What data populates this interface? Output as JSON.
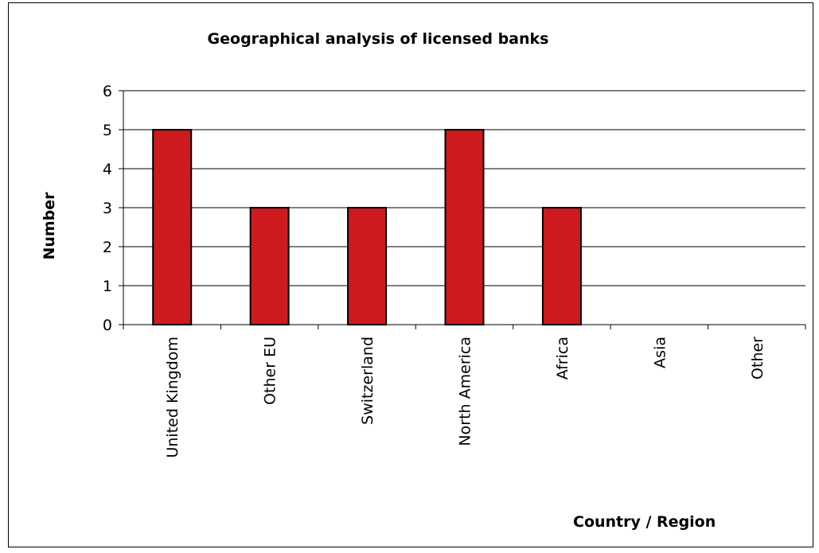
{
  "chart_data": {
    "type": "bar",
    "title": "Geographical analysis of licensed banks",
    "xlabel": "Country / Region",
    "ylabel": "Number",
    "categories": [
      "United Kingdom",
      "Other EU",
      "Switzerland",
      "North America",
      "Africa",
      "Asia",
      "Other"
    ],
    "values": [
      5,
      3,
      3,
      5,
      3,
      0,
      0
    ],
    "ylim": [
      0,
      6
    ],
    "yticks": [
      0,
      1,
      2,
      3,
      4,
      5,
      6
    ],
    "grid": true,
    "legend": "none",
    "bar_color": "#CC1A1E"
  }
}
